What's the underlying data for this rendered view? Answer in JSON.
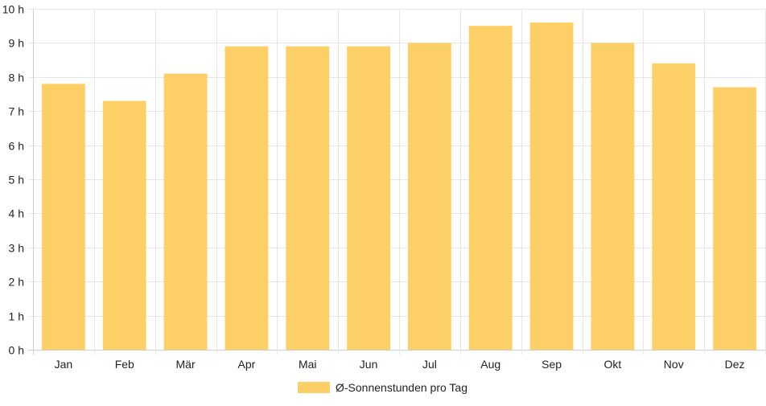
{
  "chart_data": {
    "type": "bar",
    "categories": [
      "Jan",
      "Feb",
      "Mär",
      "Apr",
      "Mai",
      "Jun",
      "Jul",
      "Aug",
      "Sep",
      "Okt",
      "Nov",
      "Dez"
    ],
    "series": [
      {
        "name": "Ø-Sonnenstunden pro Tag",
        "values": [
          7.8,
          7.3,
          8.1,
          8.9,
          8.9,
          8.9,
          9.0,
          9.5,
          9.6,
          9.0,
          8.4,
          7.7
        ],
        "color": "#fdd067"
      }
    ],
    "y_ticks": [
      "0 h",
      "1 h",
      "2 h",
      "3 h",
      "4 h",
      "5 h",
      "6 h",
      "7 h",
      "8 h",
      "9 h",
      "10 h"
    ],
    "ylim": [
      0,
      10
    ],
    "grid": true,
    "legend_position": "bottom"
  }
}
